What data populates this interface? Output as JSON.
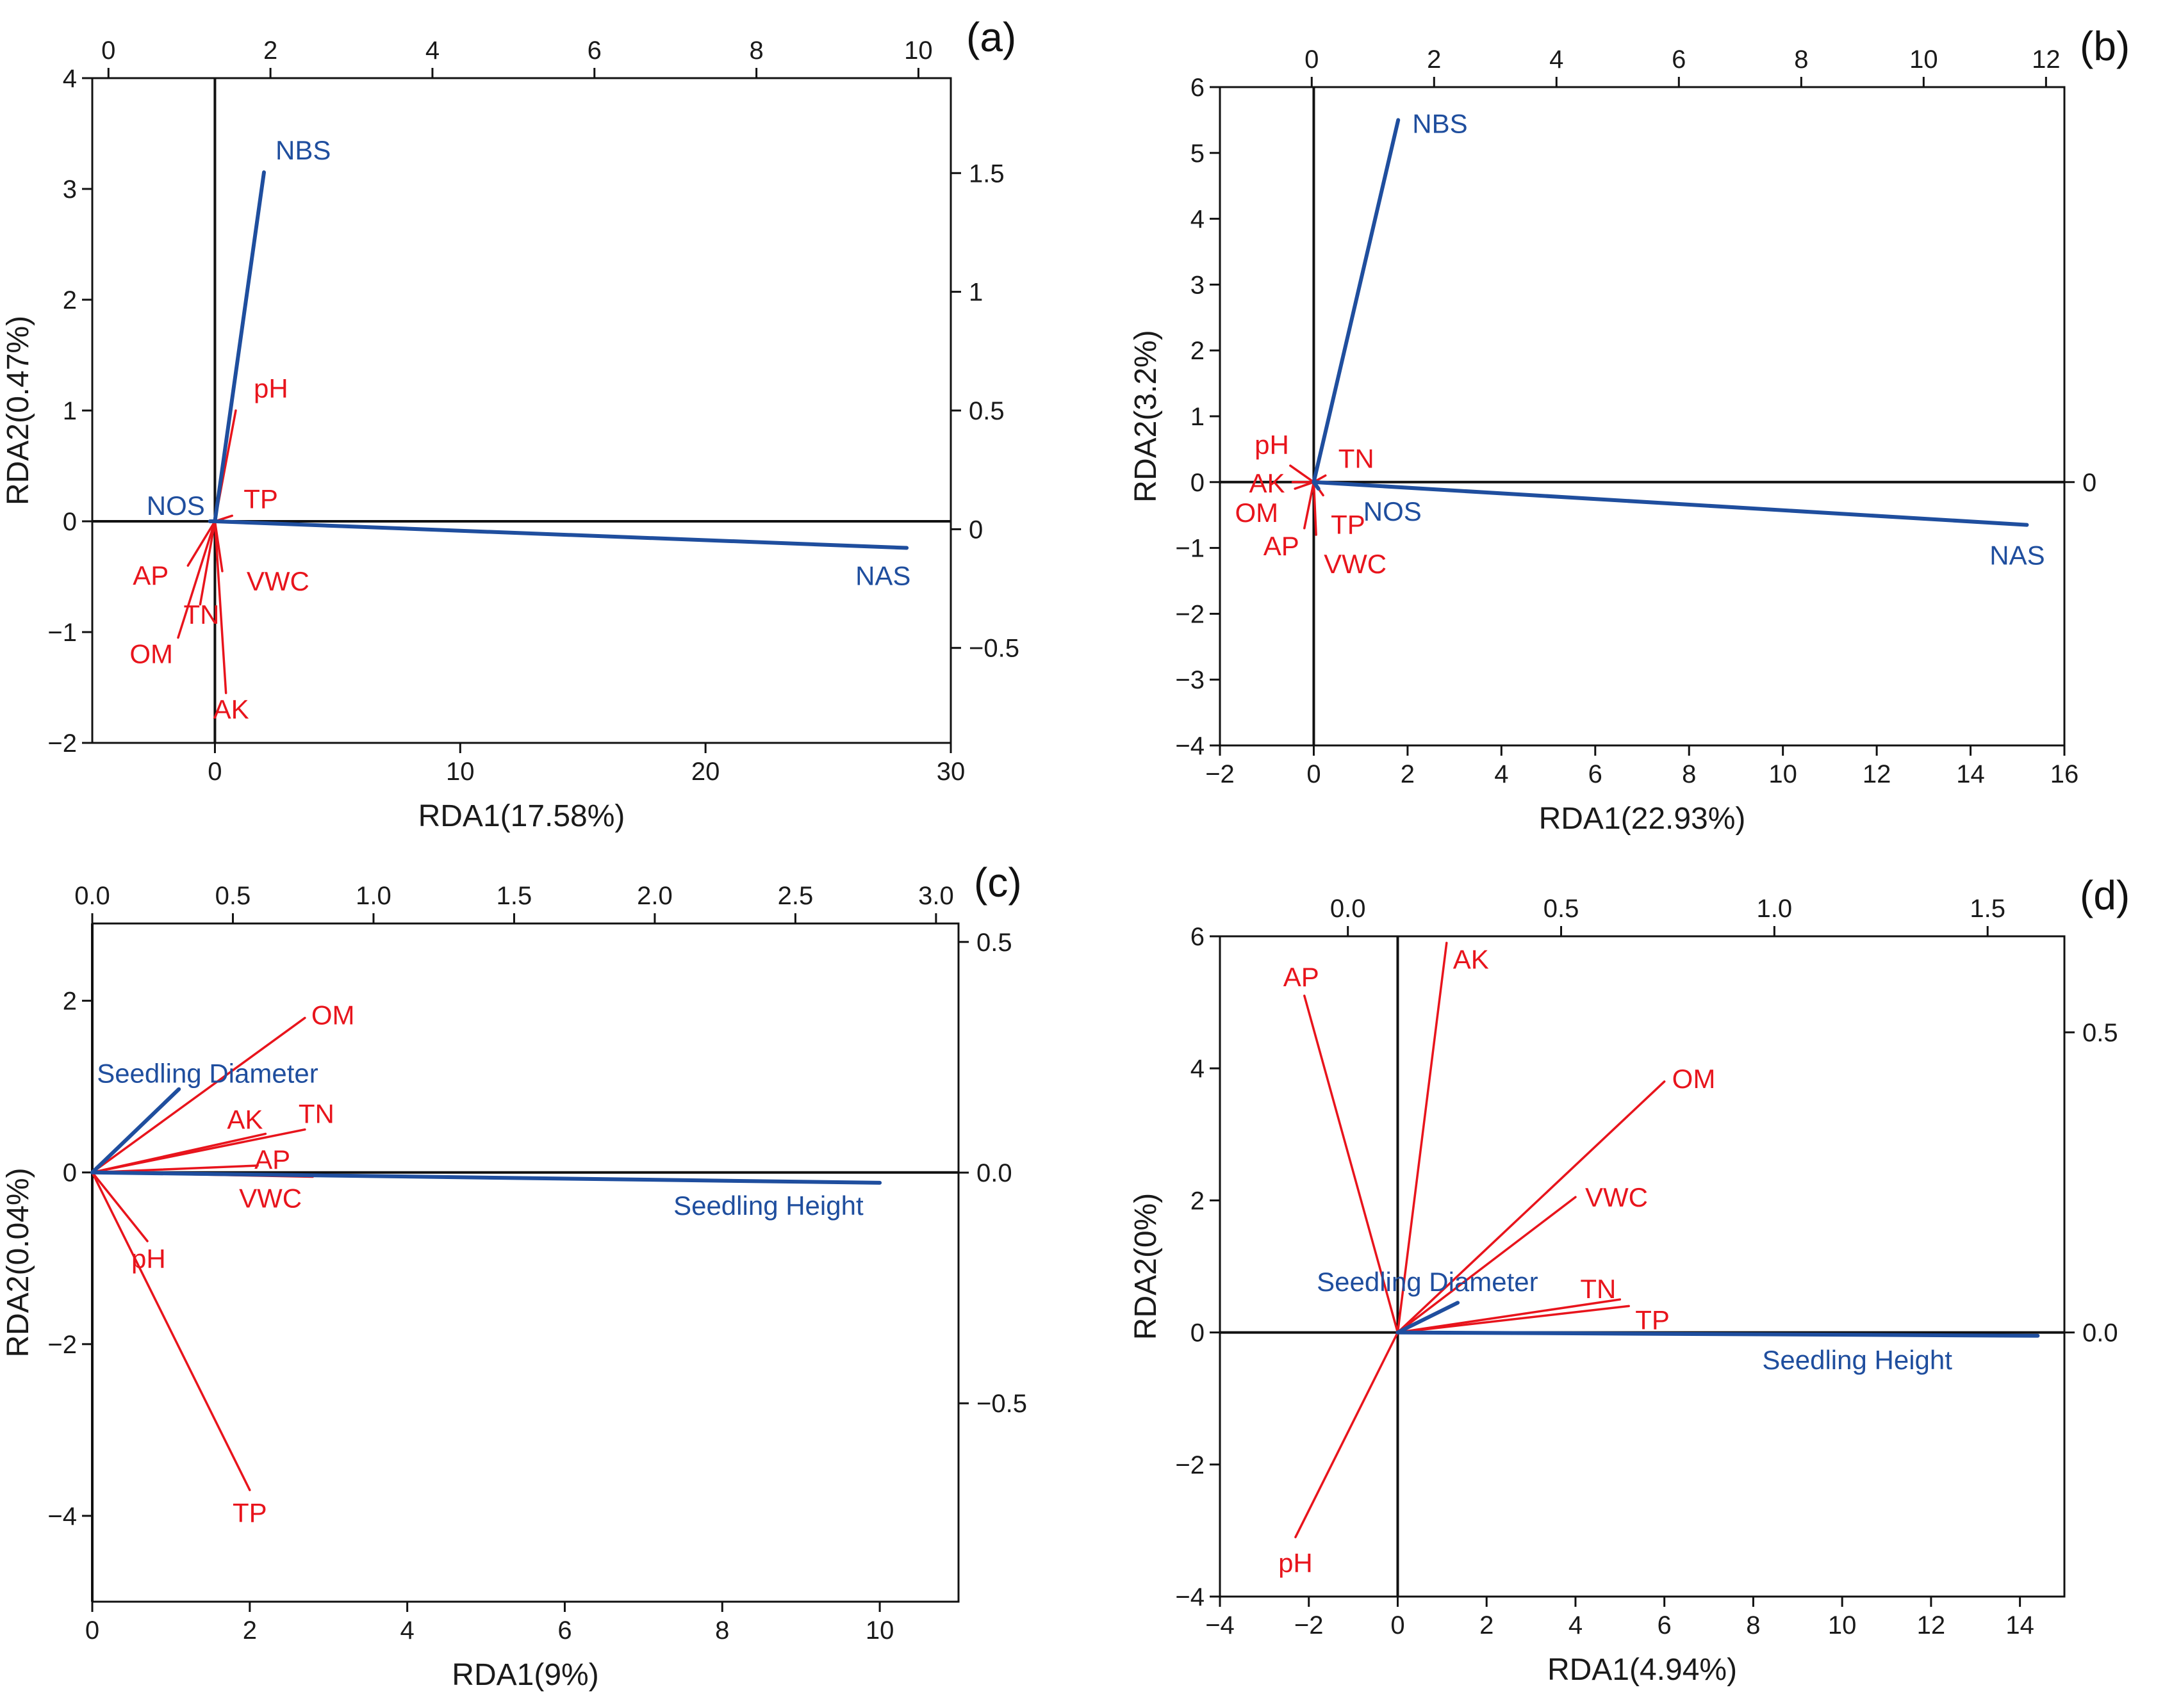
{
  "colors": {
    "environment": "#e8141c",
    "response": "#1f4e9e",
    "axis": "#111111"
  },
  "chart_data": [
    {
      "type": "scatter",
      "panel_label": "(a)",
      "xlabel": "RDA1(17.58%)",
      "ylabel": "RDA2(0.47%)",
      "xlim": [
        -5,
        30
      ],
      "ylim": [
        -2,
        4
      ],
      "xticks": [
        0,
        10,
        20,
        30
      ],
      "yticks": [
        -2,
        -1,
        0,
        1,
        2,
        3,
        4
      ],
      "top_axis": {
        "lim": [
          -0.2,
          10.4
        ],
        "ticks": [
          0,
          2,
          4,
          6,
          8,
          10
        ]
      },
      "right_axis": {
        "lim": [
          -0.9,
          1.9
        ],
        "ticks": [
          -0.5,
          0.0,
          0.5,
          1.0,
          1.5
        ]
      },
      "vectors": [
        {
          "name": "NBS",
          "group": "response",
          "x": 2.0,
          "y": 3.15
        },
        {
          "name": "NOS",
          "group": "response",
          "x": -0.2,
          "y": 0.0
        },
        {
          "name": "NAS",
          "group": "response",
          "x": 28.2,
          "y": -0.24
        },
        {
          "name": "pH",
          "group": "environment",
          "x": 0.85,
          "y": 1.0
        },
        {
          "name": "TP",
          "group": "environment",
          "x": 0.7,
          "y": 0.05
        },
        {
          "name": "AP",
          "group": "environment",
          "x": -1.1,
          "y": -0.4
        },
        {
          "name": "VWC",
          "group": "environment",
          "x": 0.3,
          "y": -0.45
        },
        {
          "name": "TN",
          "group": "environment",
          "x": -0.6,
          "y": -0.75
        },
        {
          "name": "OM",
          "group": "environment",
          "x": -1.5,
          "y": -1.05
        },
        {
          "name": "AK",
          "group": "environment",
          "x": 0.45,
          "y": -1.55
        }
      ]
    },
    {
      "type": "scatter",
      "panel_label": "(b)",
      "xlabel": "RDA1(22.93%)",
      "ylabel": "RDA2(3.2%)",
      "xlim": [
        -2,
        16
      ],
      "ylim": [
        -4,
        6
      ],
      "xticks": [
        -2,
        0,
        2,
        4,
        6,
        8,
        10,
        12,
        14,
        16
      ],
      "yticks": [
        -4,
        -3,
        -2,
        -1,
        0,
        1,
        2,
        3,
        4,
        5,
        6
      ],
      "top_axis": {
        "lim": [
          -1.5,
          12.3
        ],
        "ticks": [
          0,
          2,
          4,
          6,
          8,
          10,
          12
        ]
      },
      "right_axis": {
        "lim": [
          -4,
          6
        ],
        "ticks": [
          0
        ]
      },
      "vectors": [
        {
          "name": "NBS",
          "group": "response",
          "x": 1.8,
          "y": 5.5
        },
        {
          "name": "NOS",
          "group": "response",
          "x": 0.1,
          "y": -0.1
        },
        {
          "name": "NAS",
          "group": "response",
          "x": 15.2,
          "y": -0.65
        },
        {
          "name": "pH",
          "group": "environment",
          "x": -0.5,
          "y": 0.25
        },
        {
          "name": "TN",
          "group": "environment",
          "x": 0.25,
          "y": 0.1
        },
        {
          "name": "AK",
          "group": "environment",
          "x": -0.45,
          "y": 0.0
        },
        {
          "name": "OM",
          "group": "environment",
          "x": -0.4,
          "y": -0.1
        },
        {
          "name": "TP",
          "group": "environment",
          "x": 0.2,
          "y": -0.2
        },
        {
          "name": "AP",
          "group": "environment",
          "x": -0.2,
          "y": -0.7
        },
        {
          "name": "VWC",
          "group": "environment",
          "x": 0.05,
          "y": -0.8
        }
      ]
    },
    {
      "type": "scatter",
      "panel_label": "(c)",
      "xlabel": "RDA1(9%)",
      "ylabel": "RDA2(0.04%)",
      "xlim": [
        0,
        11
      ],
      "ylim": [
        -5,
        2.9
      ],
      "xticks": [
        0,
        2,
        4,
        6,
        8,
        10
      ],
      "yticks": [
        -4,
        -2,
        0,
        2
      ],
      "top_axis": {
        "lim": [
          0,
          3.08
        ],
        "ticks": [
          "0.0",
          "0.5",
          "1.0",
          "1.5",
          "2.0",
          "2.5",
          "3.0"
        ]
      },
      "right_axis": {
        "lim": [
          -0.93,
          0.54
        ],
        "ticks": [
          "−0.5",
          "0.0",
          "0.5"
        ]
      },
      "vectors": [
        {
          "name": "Seedling Diameter",
          "group": "response",
          "x": 1.1,
          "y": 0.97
        },
        {
          "name": "Seedling Height",
          "group": "response",
          "x": 10.0,
          "y": -0.12
        },
        {
          "name": "OM",
          "group": "environment",
          "x": 2.7,
          "y": 1.8
        },
        {
          "name": "AK",
          "group": "environment",
          "x": 2.2,
          "y": 0.45
        },
        {
          "name": "TN",
          "group": "environment",
          "x": 2.7,
          "y": 0.5
        },
        {
          "name": "AP",
          "group": "environment",
          "x": 2.1,
          "y": 0.08
        },
        {
          "name": "VWC",
          "group": "environment",
          "x": 2.8,
          "y": -0.05
        },
        {
          "name": "pH",
          "group": "environment",
          "x": 0.7,
          "y": -0.8
        },
        {
          "name": "TP",
          "group": "environment",
          "x": 2.0,
          "y": -3.7
        }
      ]
    },
    {
      "type": "scatter",
      "panel_label": "(d)",
      "xlabel": "RDA1(4.94%)",
      "ylabel": "RDA2(0%)",
      "xlim": [
        -4,
        15
      ],
      "ylim": [
        -4,
        6
      ],
      "xticks": [
        -4,
        -2,
        0,
        2,
        4,
        6,
        8,
        10,
        12,
        14
      ],
      "yticks": [
        -4,
        -2,
        0,
        2,
        4,
        6
      ],
      "top_axis": {
        "lim": [
          -0.3,
          1.68
        ],
        "ticks": [
          "0.0",
          "0.5",
          "1.0",
          "1.5"
        ]
      },
      "right_axis": {
        "lim": [
          -0.44,
          0.66
        ],
        "ticks": [
          "0.0",
          "0.5"
        ]
      },
      "vectors": [
        {
          "name": "Seedling Diameter",
          "group": "response",
          "x": 1.35,
          "y": 0.45
        },
        {
          "name": "Seedling Height",
          "group": "response",
          "x": 14.4,
          "y": -0.05
        },
        {
          "name": "AP",
          "group": "environment",
          "x": -2.1,
          "y": 5.1
        },
        {
          "name": "AK",
          "group": "environment",
          "x": 1.1,
          "y": 5.9
        },
        {
          "name": "OM",
          "group": "environment",
          "x": 6.0,
          "y": 3.8
        },
        {
          "name": "VWC",
          "group": "environment",
          "x": 4.0,
          "y": 2.05
        },
        {
          "name": "TN",
          "group": "environment",
          "x": 5.0,
          "y": 0.5
        },
        {
          "name": "TP",
          "group": "environment",
          "x": 5.2,
          "y": 0.4
        },
        {
          "name": "pH",
          "group": "environment",
          "x": -2.3,
          "y": -3.1
        }
      ]
    }
  ]
}
